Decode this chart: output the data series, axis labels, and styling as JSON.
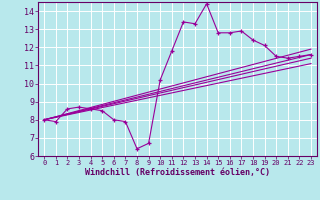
{
  "title": "",
  "xlabel": "Windchill (Refroidissement éolien,°C)",
  "background_color": "#b8e8ec",
  "grid_color": "#d0f0f4",
  "line_color": "#990099",
  "axis_color": "#660066",
  "xlim": [
    -0.5,
    23.5
  ],
  "ylim": [
    6,
    14.5
  ],
  "xticks": [
    0,
    1,
    2,
    3,
    4,
    5,
    6,
    7,
    8,
    9,
    10,
    11,
    12,
    13,
    14,
    15,
    16,
    17,
    18,
    19,
    20,
    21,
    22,
    23
  ],
  "yticks": [
    6,
    7,
    8,
    9,
    10,
    11,
    12,
    13,
    14
  ],
  "main_series_x": [
    0,
    1,
    2,
    3,
    4,
    5,
    6,
    7,
    8,
    9,
    10,
    11,
    12,
    13,
    14,
    15,
    16,
    17,
    18,
    19,
    20,
    21,
    22,
    23
  ],
  "main_series_y": [
    8.0,
    7.9,
    8.6,
    8.7,
    8.6,
    8.5,
    8.0,
    7.9,
    6.4,
    6.7,
    10.2,
    11.8,
    13.4,
    13.3,
    14.4,
    12.8,
    12.8,
    12.9,
    12.4,
    12.1,
    11.5,
    11.4,
    11.5,
    11.6
  ],
  "reg_lines": [
    [
      8.0,
      11.4
    ],
    [
      8.0,
      11.6
    ],
    [
      8.0,
      11.9
    ],
    [
      8.0,
      11.1
    ]
  ]
}
